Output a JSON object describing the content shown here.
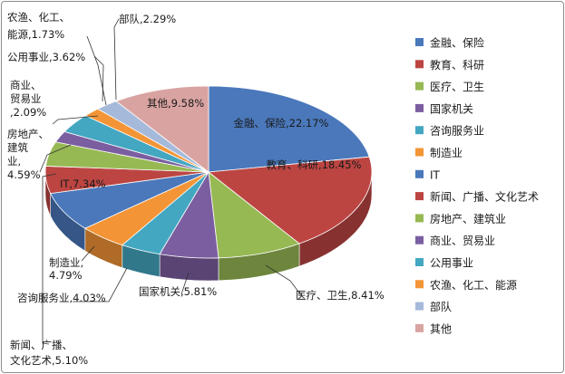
{
  "chart_data": {
    "type": "pie",
    "style": "3d",
    "legend_position": "right",
    "categories": [
      "金融、保险",
      "教育、科研",
      "医疗、卫生",
      "国家机关",
      "咨询服务业",
      "制造业",
      "IT",
      "新闻、广播、文化艺术",
      "房地产、建筑业",
      "商业、贸易业",
      "公用事业",
      "农渔、化工、能源",
      "部队",
      "其他"
    ],
    "values": [
      22.17,
      18.45,
      8.41,
      5.81,
      4.03,
      4.79,
      7.34,
      5.1,
      4.59,
      2.09,
      3.62,
      1.73,
      2.29,
      9.58
    ],
    "colors": [
      "#4a78bb",
      "#bc4542",
      "#97b954",
      "#7b5ea0",
      "#44a7c1",
      "#f39536",
      "#4a78bb",
      "#bc4542",
      "#97b954",
      "#7b5ea0",
      "#44a7c1",
      "#f39536",
      "#a5b9da",
      "#d9a3a1"
    ],
    "data_labels": [
      [
        "金融、保险,22.17%"
      ],
      [
        "教育、科研,18.45%"
      ],
      [
        "医疗、卫生,8.41%"
      ],
      [
        "国家机关,5.81%"
      ],
      [
        "咨询服务业,4.03%"
      ],
      [
        "制造业,",
        "4.79%"
      ],
      [
        "IT,7.34%"
      ],
      [
        "新闻、广播、",
        "文化艺术,5.10%"
      ],
      [
        "房地产、",
        "建筑",
        "业,",
        "4.59%"
      ],
      [
        "商业、",
        "贸易业",
        ",2.09%"
      ],
      [
        "公用事业,3.62%"
      ],
      [
        "农渔、化工、",
        "能源,1.73%"
      ],
      [
        "部队,2.29%"
      ],
      [
        "其他,9.58%"
      ]
    ]
  }
}
